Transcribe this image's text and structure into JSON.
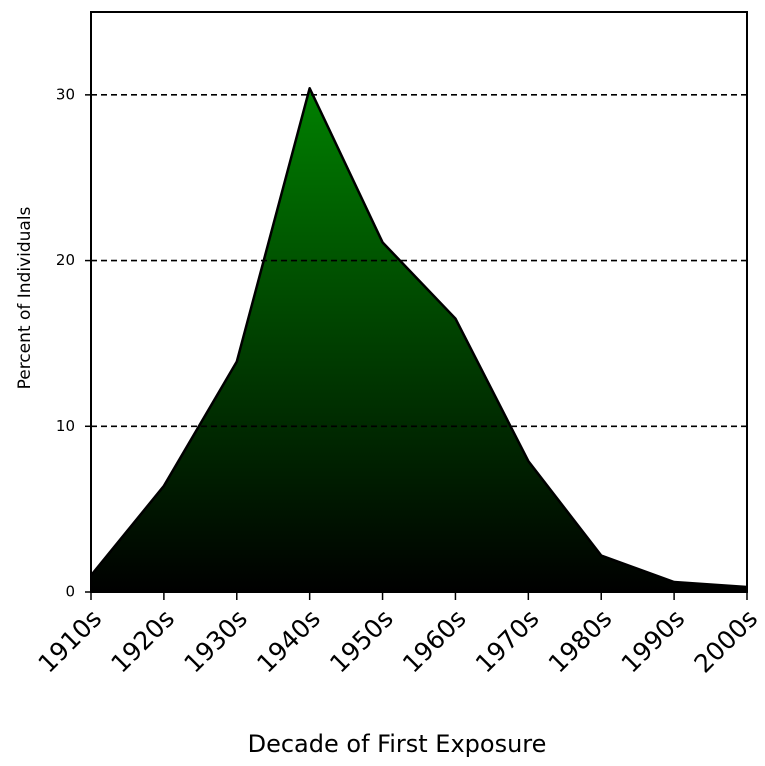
{
  "chart_data": {
    "type": "area",
    "x_label": "Decade of First Exposure",
    "y_label": "Percent of Individuals",
    "categories": [
      "1910s",
      "1920s",
      "1930s",
      "1940s",
      "1950s",
      "1960s",
      "1970s",
      "1980s",
      "1990s",
      "2000s"
    ],
    "values": [
      1.0,
      6.4,
      13.9,
      30.4,
      21.1,
      16.5,
      7.9,
      2.2,
      0.6,
      0.3
    ],
    "color_top": "#008000",
    "color_bottom": "#000000",
    "ylim": [
      0,
      35
    ],
    "yticks": [
      0,
      10,
      20,
      30
    ],
    "grid": true
  }
}
